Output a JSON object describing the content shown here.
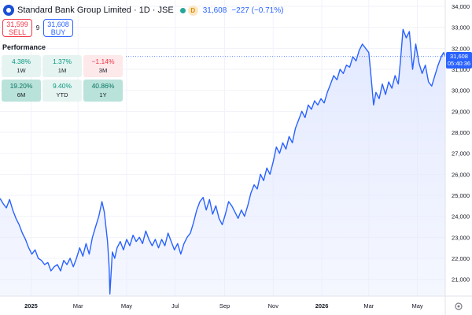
{
  "header": {
    "title": "Standard Bank Group Limited · 1D · JSE",
    "last": "31,608",
    "change": "−227 (−0.71%)"
  },
  "trade": {
    "sell_price": "31,599",
    "sell_label": "SELL",
    "spread": "9",
    "buy_price": "31,608",
    "buy_label": "BUY"
  },
  "performance": {
    "title": "Performance",
    "cells": [
      {
        "value": "4.38%",
        "label": "1W",
        "tone": "pos-light"
      },
      {
        "value": "1.37%",
        "label": "1M",
        "tone": "pos-light"
      },
      {
        "value": "−1.14%",
        "label": "3M",
        "tone": "neg-light"
      },
      {
        "value": "19.20%",
        "label": "6M",
        "tone": "pos-strong"
      },
      {
        "value": "9.40%",
        "label": "YTD",
        "tone": "pos-light"
      },
      {
        "value": "40.86%",
        "label": "1Y",
        "tone": "pos-strong"
      }
    ]
  },
  "last_label": {
    "price": "31,608",
    "countdown": "05:40:36"
  },
  "colors": {
    "line": "#2962ff",
    "area": "#e3e9ff",
    "grid": "#f0f3fa",
    "axis_text": "#131722",
    "sell": "#f23645",
    "buy": "#2962ff"
  },
  "chart_data": {
    "type": "area",
    "title": "Standard Bank Group Limited · 1D · JSE",
    "xlabel": "",
    "ylabel": "",
    "ylim": [
      20200,
      34300
    ],
    "xlim": [
      "2024-11-23",
      "2026-06-05"
    ],
    "y_ticks": [
      21000,
      22000,
      23000,
      24000,
      25000,
      26000,
      27000,
      28000,
      29000,
      30000,
      31000,
      32000,
      33000,
      34000
    ],
    "y_tick_labels": [
      "21,000",
      "22,000",
      "23,000",
      "24,000",
      "25,000",
      "26,000",
      "27,000",
      "28,000",
      "29,000",
      "30,000",
      "31,000",
      "32,000",
      "33,000",
      "34,000"
    ],
    "x_ticks": [
      {
        "date": "2025-01-01",
        "label": "2025",
        "bold": true
      },
      {
        "date": "2025-03-01",
        "label": "Mar",
        "bold": false
      },
      {
        "date": "2025-05-01",
        "label": "May",
        "bold": false
      },
      {
        "date": "2025-07-01",
        "label": "Jul",
        "bold": false
      },
      {
        "date": "2025-09-01",
        "label": "Sep",
        "bold": false
      },
      {
        "date": "2025-11-01",
        "label": "Nov",
        "bold": false
      },
      {
        "date": "2026-01-01",
        "label": "2026",
        "bold": true
      },
      {
        "date": "2026-03-01",
        "label": "Mar",
        "bold": false
      },
      {
        "date": "2026-05-01",
        "label": "May",
        "bold": false
      }
    ],
    "last_value": 31608,
    "series": [
      {
        "points": [
          [
            "2024-11-23",
            24850
          ],
          [
            "2024-11-27",
            24600
          ],
          [
            "2024-12-01",
            24400
          ],
          [
            "2024-12-05",
            24800
          ],
          [
            "2024-12-09",
            24300
          ],
          [
            "2024-12-13",
            23900
          ],
          [
            "2024-12-17",
            23600
          ],
          [
            "2024-12-21",
            23200
          ],
          [
            "2024-12-25",
            22900
          ],
          [
            "2024-12-29",
            22500
          ],
          [
            "2025-01-02",
            22200
          ],
          [
            "2025-01-06",
            22400
          ],
          [
            "2025-01-10",
            22000
          ],
          [
            "2025-01-14",
            21900
          ],
          [
            "2025-01-18",
            21700
          ],
          [
            "2025-01-22",
            21800
          ],
          [
            "2025-01-26",
            21400
          ],
          [
            "2025-01-30",
            21600
          ],
          [
            "2025-02-03",
            21700
          ],
          [
            "2025-02-07",
            21400
          ],
          [
            "2025-02-11",
            21900
          ],
          [
            "2025-02-15",
            21700
          ],
          [
            "2025-02-19",
            22000
          ],
          [
            "2025-02-23",
            21600
          ],
          [
            "2025-02-27",
            22000
          ],
          [
            "2025-03-03",
            22500
          ],
          [
            "2025-03-07",
            22100
          ],
          [
            "2025-03-11",
            22700
          ],
          [
            "2025-03-15",
            22200
          ],
          [
            "2025-03-19",
            23000
          ],
          [
            "2025-03-23",
            23500
          ],
          [
            "2025-03-27",
            24000
          ],
          [
            "2025-03-31",
            24700
          ],
          [
            "2025-04-03",
            24200
          ],
          [
            "2025-04-07",
            22800
          ],
          [
            "2025-04-09",
            21600
          ],
          [
            "2025-04-10",
            20300
          ],
          [
            "2025-04-13",
            22300
          ],
          [
            "2025-04-16",
            22000
          ],
          [
            "2025-04-19",
            22500
          ],
          [
            "2025-04-23",
            22800
          ],
          [
            "2025-04-27",
            22400
          ],
          [
            "2025-05-01",
            22900
          ],
          [
            "2025-05-05",
            22600
          ],
          [
            "2025-05-09",
            23100
          ],
          [
            "2025-05-13",
            22800
          ],
          [
            "2025-05-17",
            23000
          ],
          [
            "2025-05-21",
            22700
          ],
          [
            "2025-05-25",
            23300
          ],
          [
            "2025-05-29",
            22900
          ],
          [
            "2025-06-02",
            22600
          ],
          [
            "2025-06-06",
            22900
          ],
          [
            "2025-06-10",
            22500
          ],
          [
            "2025-06-14",
            22900
          ],
          [
            "2025-06-18",
            22600
          ],
          [
            "2025-06-22",
            23200
          ],
          [
            "2025-06-26",
            22800
          ],
          [
            "2025-06-30",
            22400
          ],
          [
            "2025-07-04",
            22700
          ],
          [
            "2025-07-08",
            22200
          ],
          [
            "2025-07-12",
            22700
          ],
          [
            "2025-07-16",
            23000
          ],
          [
            "2025-07-20",
            23200
          ],
          [
            "2025-07-24",
            23700
          ],
          [
            "2025-07-28",
            24300
          ],
          [
            "2025-08-01",
            24700
          ],
          [
            "2025-08-05",
            24900
          ],
          [
            "2025-08-09",
            24300
          ],
          [
            "2025-08-13",
            24800
          ],
          [
            "2025-08-17",
            24100
          ],
          [
            "2025-08-21",
            24500
          ],
          [
            "2025-08-25",
            23900
          ],
          [
            "2025-08-29",
            23600
          ],
          [
            "2025-09-02",
            24100
          ],
          [
            "2025-09-06",
            24700
          ],
          [
            "2025-09-10",
            24500
          ],
          [
            "2025-09-14",
            24200
          ],
          [
            "2025-09-18",
            23900
          ],
          [
            "2025-09-22",
            24300
          ],
          [
            "2025-09-26",
            24000
          ],
          [
            "2025-09-30",
            24500
          ],
          [
            "2025-10-04",
            25100
          ],
          [
            "2025-10-08",
            25500
          ],
          [
            "2025-10-12",
            25300
          ],
          [
            "2025-10-16",
            26000
          ],
          [
            "2025-10-20",
            25700
          ],
          [
            "2025-10-24",
            26300
          ],
          [
            "2025-10-28",
            26000
          ],
          [
            "2025-11-01",
            26600
          ],
          [
            "2025-11-05",
            27300
          ],
          [
            "2025-11-09",
            27000
          ],
          [
            "2025-11-13",
            27500
          ],
          [
            "2025-11-17",
            27200
          ],
          [
            "2025-11-21",
            27800
          ],
          [
            "2025-11-25",
            27500
          ],
          [
            "2025-11-29",
            28200
          ],
          [
            "2025-12-03",
            28600
          ],
          [
            "2025-12-07",
            29000
          ],
          [
            "2025-12-11",
            28700
          ],
          [
            "2025-12-15",
            29300
          ],
          [
            "2025-12-19",
            29100
          ],
          [
            "2025-12-23",
            29500
          ],
          [
            "2025-12-27",
            29300
          ],
          [
            "2025-12-31",
            29600
          ],
          [
            "2026-01-04",
            29400
          ],
          [
            "2026-01-08",
            29900
          ],
          [
            "2026-01-12",
            30300
          ],
          [
            "2026-01-16",
            30700
          ],
          [
            "2026-01-20",
            30500
          ],
          [
            "2026-01-24",
            31000
          ],
          [
            "2026-01-28",
            30800
          ],
          [
            "2026-02-01",
            31200
          ],
          [
            "2026-02-05",
            31100
          ],
          [
            "2026-02-09",
            31600
          ],
          [
            "2026-02-13",
            31400
          ],
          [
            "2026-02-17",
            31900
          ],
          [
            "2026-02-21",
            32200
          ],
          [
            "2026-02-25",
            32000
          ],
          [
            "2026-03-01",
            31800
          ],
          [
            "2026-03-04",
            30600
          ],
          [
            "2026-03-07",
            29300
          ],
          [
            "2026-03-10",
            29900
          ],
          [
            "2026-03-14",
            29600
          ],
          [
            "2026-03-18",
            30300
          ],
          [
            "2026-03-22",
            29800
          ],
          [
            "2026-03-26",
            30400
          ],
          [
            "2026-03-30",
            30100
          ],
          [
            "2026-04-03",
            30700
          ],
          [
            "2026-04-07",
            30300
          ],
          [
            "2026-04-10",
            31500
          ],
          [
            "2026-04-13",
            32900
          ],
          [
            "2026-04-17",
            32500
          ],
          [
            "2026-04-21",
            32800
          ],
          [
            "2026-04-25",
            31000
          ],
          [
            "2026-04-29",
            32200
          ],
          [
            "2026-05-03",
            31300
          ],
          [
            "2026-05-07",
            30800
          ],
          [
            "2026-05-11",
            31200
          ],
          [
            "2026-05-15",
            30400
          ],
          [
            "2026-05-19",
            30200
          ],
          [
            "2026-05-23",
            30700
          ],
          [
            "2026-05-27",
            31200
          ],
          [
            "2026-05-31",
            31600
          ],
          [
            "2026-06-03",
            31800
          ],
          [
            "2026-06-05",
            31608
          ]
        ]
      }
    ]
  }
}
